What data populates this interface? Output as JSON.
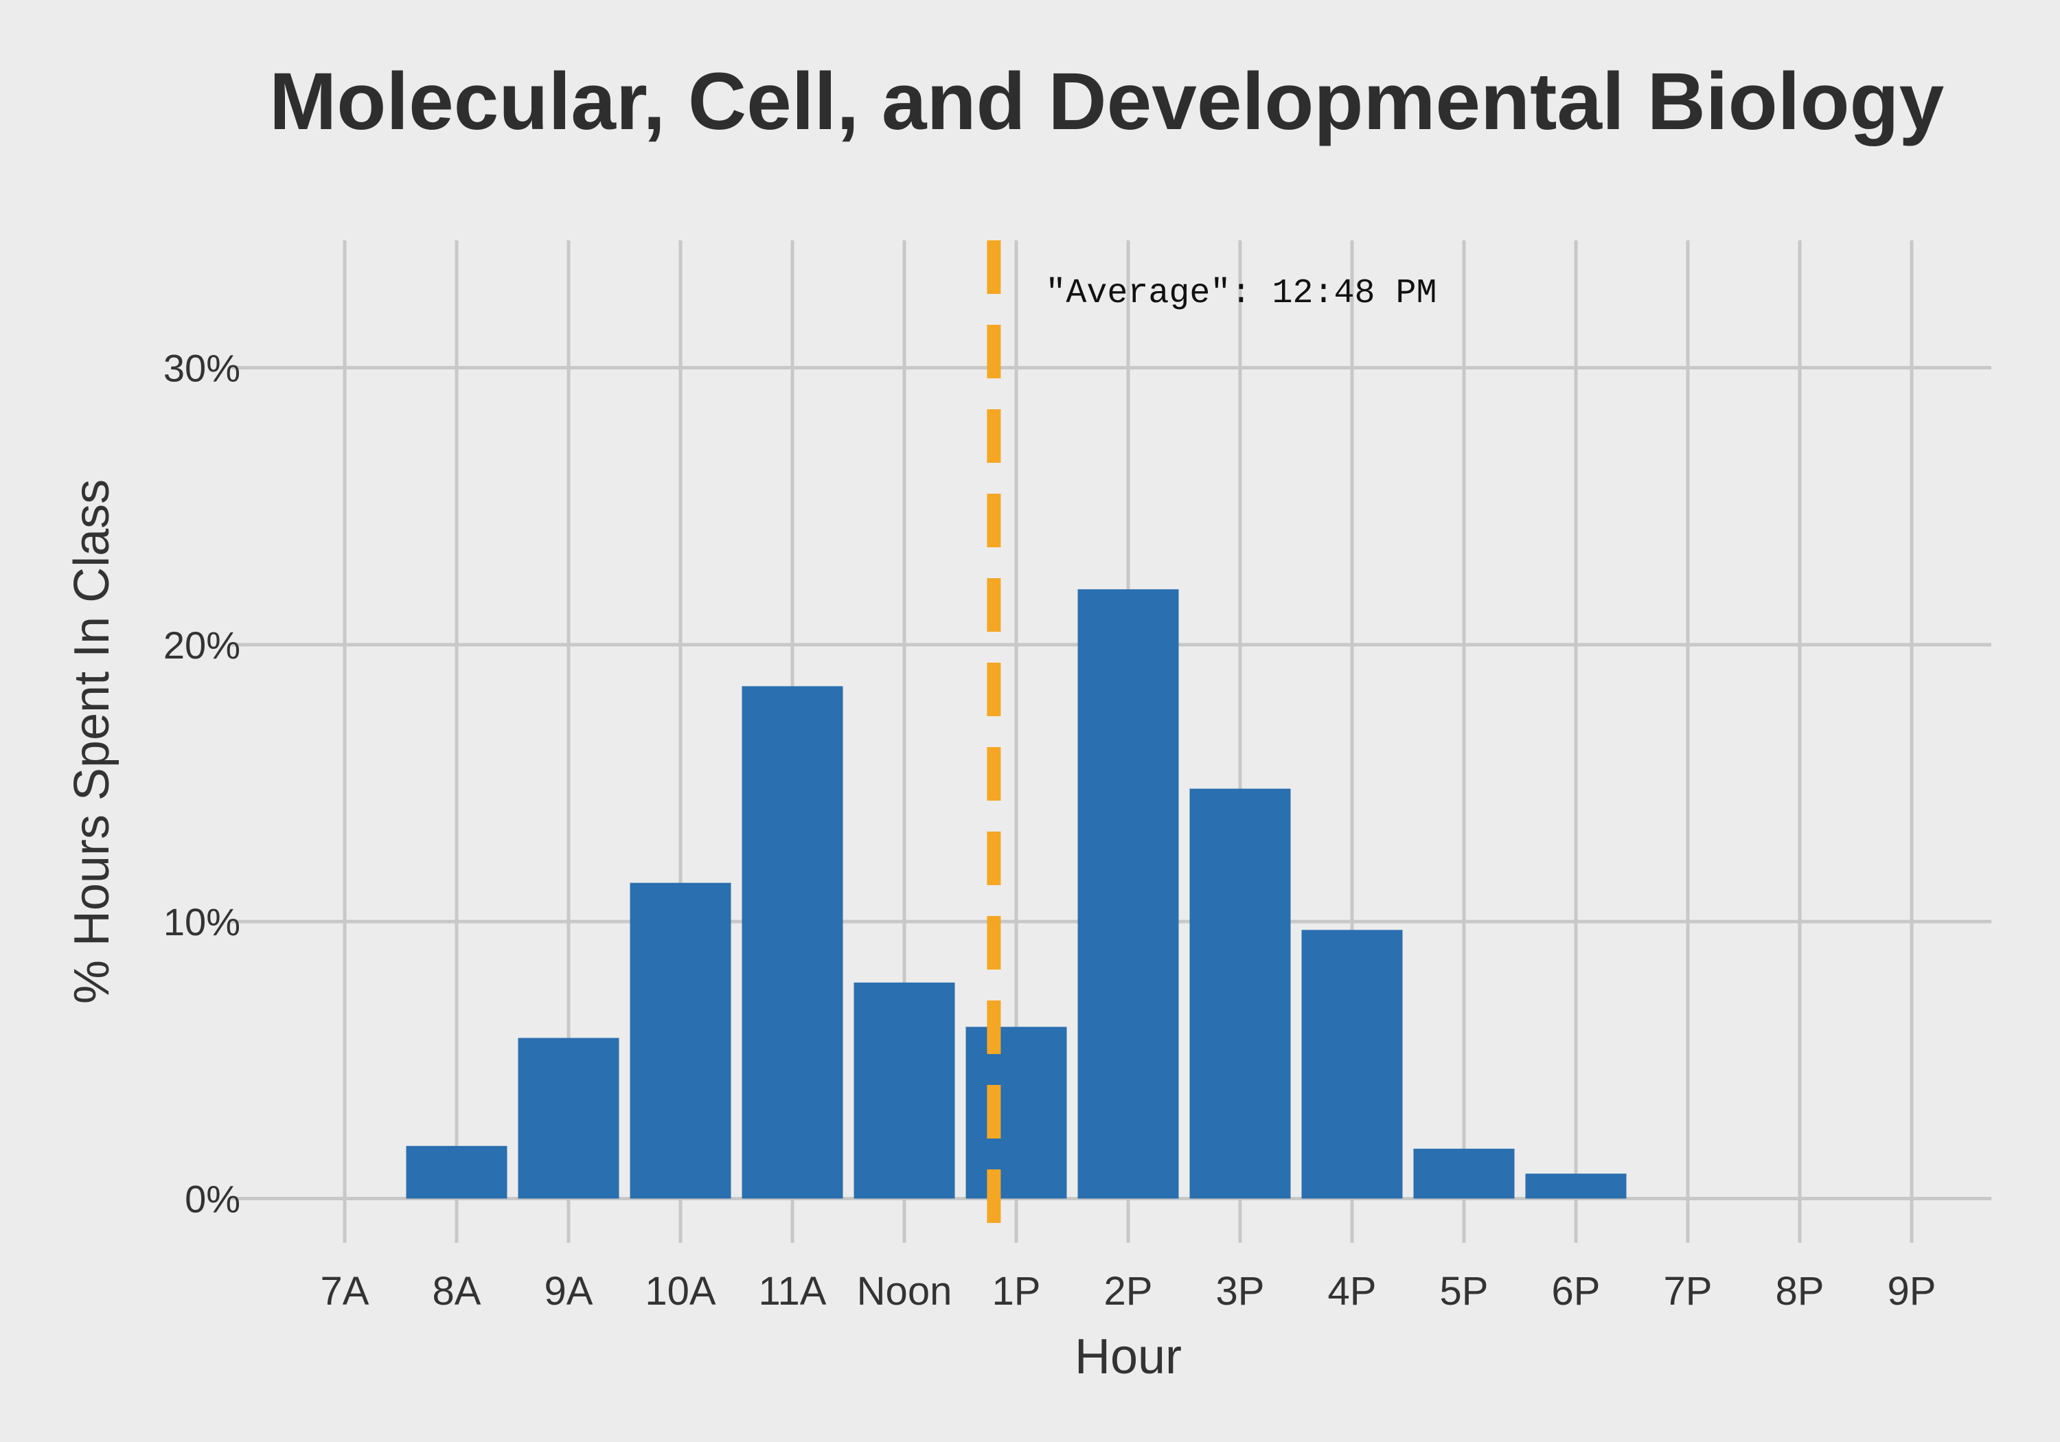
{
  "chart_data": {
    "type": "bar",
    "title": "Molecular, Cell, and Developmental Biology",
    "xlabel": "Hour",
    "ylabel": "% Hours Spent In Class",
    "categories": [
      "7A",
      "8A",
      "9A",
      "10A",
      "11A",
      "Noon",
      "1P",
      "2P",
      "3P",
      "4P",
      "5P",
      "6P",
      "7P",
      "8P",
      "9P"
    ],
    "values": [
      0,
      1.9,
      5.8,
      11.4,
      18.5,
      7.8,
      6.2,
      22.0,
      14.8,
      9.7,
      1.8,
      0.9,
      0,
      0,
      0
    ],
    "y_ticks": [
      {
        "value": 0,
        "label": "0%"
      },
      {
        "value": 10,
        "label": "10%"
      },
      {
        "value": 20,
        "label": "20%"
      },
      {
        "value": 30,
        "label": "30%"
      }
    ],
    "ylim": [
      -1.6,
      34.6
    ],
    "grid": true,
    "average_line": {
      "hour_value": 12.8,
      "label": "\"Average\": 12:48 PM",
      "color": "#f5a623",
      "style": "dashed"
    },
    "bar_color": "#2a6fb0",
    "background_color": "#ececec",
    "grid_color": "#c8c8c8"
  }
}
